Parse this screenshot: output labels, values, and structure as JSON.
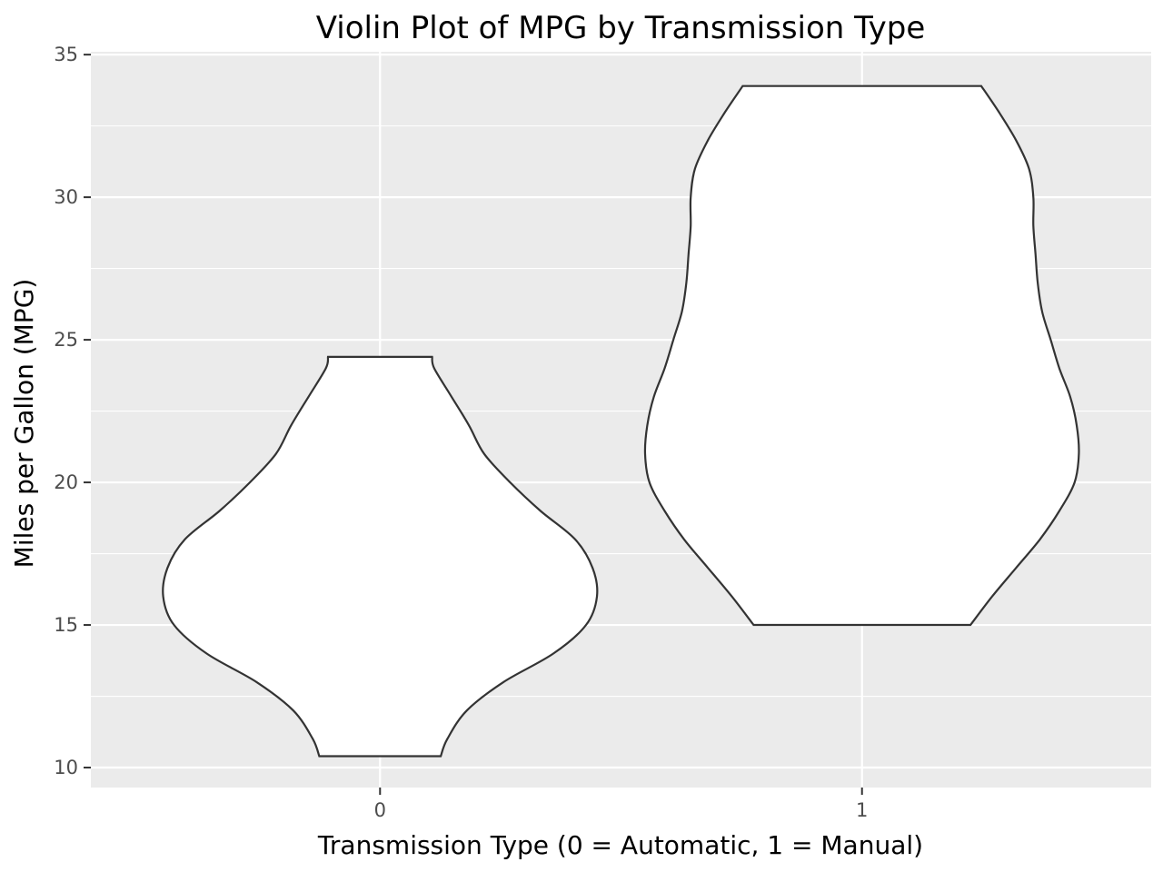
{
  "chart_data": {
    "type": "violin",
    "title": "Violin Plot of MPG by Transmission Type",
    "xlabel": "Transmission Type (0 = Automatic, 1 = Manual)",
    "ylabel": "Miles per Gallon (MPG)",
    "categories": [
      "0",
      "1"
    ],
    "ylim": [
      9.3,
      35.1
    ],
    "yticks": [
      10,
      15,
      20,
      25,
      30,
      35
    ],
    "grid": true,
    "colors": {
      "panel": "#ebebeb",
      "grid": "#ffffff",
      "outline": "#333333",
      "fill": "#ffffff"
    },
    "series": [
      {
        "category": "0",
        "range": [
          10.4,
          24.4
        ],
        "density_profile": [
          [
            10.4,
            0.28
          ],
          [
            11.0,
            0.31
          ],
          [
            12.0,
            0.4
          ],
          [
            13.0,
            0.57
          ],
          [
            14.0,
            0.8
          ],
          [
            15.0,
            0.95
          ],
          [
            16.0,
            1.0
          ],
          [
            17.0,
            0.98
          ],
          [
            18.0,
            0.9
          ],
          [
            19.0,
            0.74
          ],
          [
            20.0,
            0.6
          ],
          [
            21.0,
            0.48
          ],
          [
            22.0,
            0.41
          ],
          [
            23.0,
            0.33
          ],
          [
            24.0,
            0.25
          ],
          [
            24.4,
            0.24
          ]
        ]
      },
      {
        "category": "1",
        "range": [
          15.0,
          33.9
        ],
        "density_profile": [
          [
            15.0,
            0.5
          ],
          [
            16.0,
            0.6
          ],
          [
            17.0,
            0.71
          ],
          [
            18.0,
            0.82
          ],
          [
            19.0,
            0.91
          ],
          [
            20.0,
            0.98
          ],
          [
            21.0,
            1.0
          ],
          [
            22.0,
            0.99
          ],
          [
            23.0,
            0.96
          ],
          [
            24.0,
            0.91
          ],
          [
            25.0,
            0.87
          ],
          [
            26.0,
            0.83
          ],
          [
            27.0,
            0.81
          ],
          [
            28.0,
            0.8
          ],
          [
            29.0,
            0.79
          ],
          [
            30.0,
            0.79
          ],
          [
            31.0,
            0.77
          ],
          [
            32.0,
            0.71
          ],
          [
            33.0,
            0.63
          ],
          [
            33.9,
            0.55
          ]
        ]
      }
    ]
  }
}
